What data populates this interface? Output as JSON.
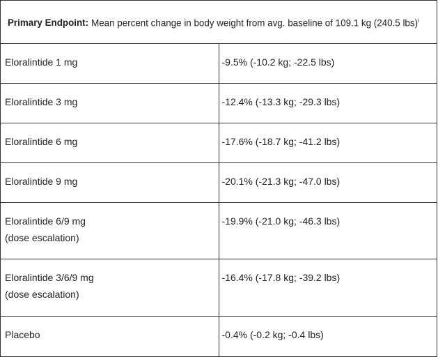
{
  "table": {
    "header": {
      "label": "Primary Endpoint:",
      "text": "Mean percent change in body weight from avg. baseline of 109.1 kg (240.5 lbs)",
      "note": "i"
    },
    "rows": [
      {
        "name": [
          "Eloralintide 1 mg"
        ],
        "result": "-9.5% (-10.2 kg; -22.5 lbs)"
      },
      {
        "name": [
          "Eloralintide 3 mg"
        ],
        "result": "-12.4% (-13.3 kg; -29.3 lbs)"
      },
      {
        "name": [
          "Eloralintide 6 mg"
        ],
        "result": "-17.6% (-18.7 kg; -41.2 lbs)"
      },
      {
        "name": [
          "Eloralintide 9 mg"
        ],
        "result": "-20.1% (-21.3 kg; -47.0 lbs)"
      },
      {
        "name": [
          "Eloralintide 6/9 mg",
          "(dose escalation)"
        ],
        "result": "-19.9% (-21.0 kg; -46.3 lbs)"
      },
      {
        "name": [
          "Eloralintide 3/6/9 mg",
          "(dose escalation)"
        ],
        "result": "-16.4% (-17.8 kg; -39.2 lbs)"
      },
      {
        "name": [
          "Placebo"
        ],
        "result": "-0.4% (-0.2 kg; -0.4 lbs)"
      }
    ]
  }
}
